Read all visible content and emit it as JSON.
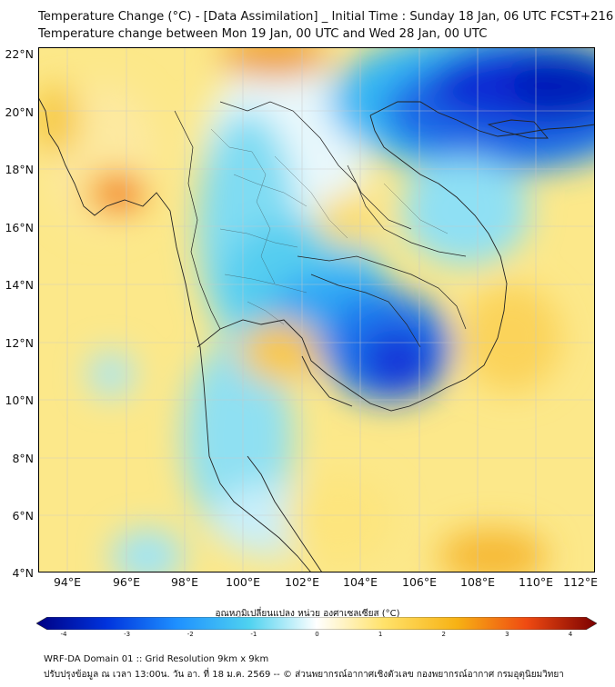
{
  "title": {
    "line1": "Temperature Change (°C) - [Data Assimilation] _ Initial Time : Sunday 18 Jan, 06 UTC FCST+216",
    "line2": "Temperature change between Mon 19 Jan, 00 UTC and Wed 28 Jan, 00 UTC"
  },
  "map": {
    "projection": "lat-lon",
    "lat_range": [
      4,
      22
    ],
    "lon_range": [
      93,
      112
    ],
    "lat_ticks": [
      "22°N",
      "20°N",
      "18°N",
      "16°N",
      "14°N",
      "12°N",
      "10°N",
      "8°N",
      "6°N",
      "4°N"
    ],
    "lon_ticks": [
      "94°E",
      "96°E",
      "98°E",
      "100°E",
      "102°E",
      "104°E",
      "106°E",
      "108°E",
      "110°E",
      "112°E"
    ],
    "gridlines": true,
    "field_notes": {
      "strong_cooling": [
        "northern Vietnam / southern China coast (~20-22°N, 105-112°E)",
        "Cambodia / Tonle Sap (~11-14°N, 103-107°E)"
      ],
      "warming": [
        "Myanmar coast near 96°E 17°N",
        "Gulf of Thailand",
        "eastern Vietnam coast",
        "north near 100-102°E 22°N",
        "south Malay Peninsula seas"
      ]
    }
  },
  "colorbar": {
    "label": "อุณหภูมิเปลี่ยนแปลง หน่วย องศาเซลเซียส (°C)",
    "min": -4,
    "max": 4,
    "ticks": [
      "-4",
      "-3",
      "-2",
      "-1",
      "0",
      "1",
      "2",
      "3",
      "4"
    ],
    "colors": {
      "neg4": "#000083",
      "neg3": "#0033dd",
      "neg2": "#1e90ff",
      "neg1": "#4fd2f0",
      "zero": "#ffffff",
      "pos1": "#ffe26a",
      "pos2": "#f7b214",
      "pos3": "#ef4a12",
      "pos4": "#7b0000"
    }
  },
  "footer": {
    "line1": "WRF-DA Domain 01 :: Grid Resolution 9km x 9km",
    "line2": "ปรับปรุงข้อมูล ณ เวลา 13:00น. วัน อา. ที่ 18 ม.ค. 2569 -- © ส่วนพยากรณ์อากาศเชิงตัวเลข กองพยากรณ์อากาศ กรมอุตุนิยมวิทยา"
  }
}
